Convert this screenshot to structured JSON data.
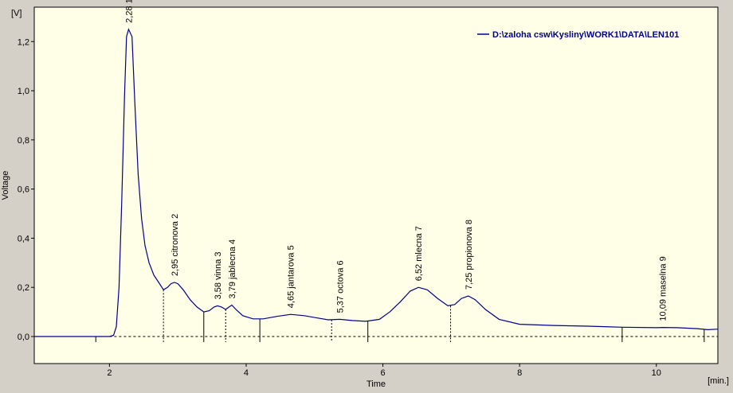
{
  "chart_data": {
    "type": "line",
    "title": "",
    "xlabel": "Time",
    "ylabel": "Voltage",
    "x_unit": "[min.]",
    "y_unit": "[V]",
    "xlim": [
      0.9,
      10.9
    ],
    "ylim": [
      -0.11,
      1.34
    ],
    "x_ticks": [
      2,
      4,
      6,
      8,
      10
    ],
    "y_ticks": [
      0.0,
      0.2,
      0.4,
      0.6,
      0.8,
      1.0,
      1.2
    ],
    "x_tick_labels": [
      "2",
      "4",
      "6",
      "8",
      "10"
    ],
    "y_tick_labels": [
      "0,0",
      "0,2",
      "0,4",
      "0,6",
      "0,8",
      "1,0",
      "1,2"
    ],
    "grid": false,
    "legend_position": "top-right",
    "colors": {
      "plot_background": "#ffffe8",
      "trace": "#00008b",
      "window": "#d4d0c8"
    },
    "series": [
      {
        "name": "D:\\zaloha csw\\Kysliny\\WORK1\\DATA\\LEN101",
        "x": [
          0.9,
          2.0,
          2.06,
          2.1,
          2.14,
          2.18,
          2.22,
          2.25,
          2.28,
          2.33,
          2.37,
          2.42,
          2.47,
          2.52,
          2.58,
          2.65,
          2.72,
          2.79,
          2.85,
          2.9,
          2.95,
          3.0,
          3.08,
          3.18,
          3.28,
          3.38,
          3.46,
          3.53,
          3.58,
          3.64,
          3.7,
          3.75,
          3.79,
          3.85,
          3.95,
          4.1,
          4.25,
          4.45,
          4.65,
          4.85,
          5.05,
          5.2,
          5.37,
          5.55,
          5.75,
          5.95,
          6.1,
          6.25,
          6.4,
          6.52,
          6.65,
          6.8,
          6.95,
          7.05,
          7.15,
          7.25,
          7.35,
          7.5,
          7.7,
          8.0,
          8.5,
          9.0,
          9.5,
          10.0,
          10.09,
          10.3,
          10.6,
          10.75,
          10.9
        ],
        "y": [
          0.0,
          0.0,
          0.005,
          0.04,
          0.2,
          0.55,
          0.98,
          1.22,
          1.25,
          1.22,
          0.96,
          0.66,
          0.48,
          0.37,
          0.3,
          0.25,
          0.22,
          0.19,
          0.2,
          0.215,
          0.22,
          0.215,
          0.19,
          0.15,
          0.12,
          0.1,
          0.105,
          0.12,
          0.125,
          0.12,
          0.11,
          0.12,
          0.128,
          0.11,
          0.085,
          0.072,
          0.072,
          0.082,
          0.09,
          0.085,
          0.075,
          0.068,
          0.07,
          0.065,
          0.062,
          0.07,
          0.1,
          0.14,
          0.185,
          0.2,
          0.19,
          0.155,
          0.125,
          0.13,
          0.155,
          0.165,
          0.15,
          0.11,
          0.07,
          0.05,
          0.045,
          0.042,
          0.038,
          0.036,
          0.037,
          0.036,
          0.032,
          0.028,
          0.03
        ]
      }
    ],
    "baseline": {
      "y": 0.0,
      "style": "dashed"
    },
    "peaks": [
      {
        "label": "2,28  1",
        "x": 2.28,
        "y": 1.25
      },
      {
        "label": "2,95 citronova  2",
        "x": 2.95,
        "y": 0.22
      },
      {
        "label": "3,58 vinna  3",
        "x": 3.58,
        "y": 0.125
      },
      {
        "label": "3,79 jablecna  4",
        "x": 3.79,
        "y": 0.128
      },
      {
        "label": "4,65 jantarova  5",
        "x": 4.65,
        "y": 0.09
      },
      {
        "label": "5,37 octova  6",
        "x": 5.37,
        "y": 0.07
      },
      {
        "label": "6,52 mlecna  7",
        "x": 6.52,
        "y": 0.2
      },
      {
        "label": "7,25 propionova  8",
        "x": 7.25,
        "y": 0.165
      },
      {
        "label": "10,09 maselna  9",
        "x": 10.09,
        "y": 0.037
      }
    ],
    "peak_boundaries": [
      {
        "x": 1.8,
        "y": 0.0,
        "style": "solid"
      },
      {
        "x": 2.79,
        "y": 0.19,
        "style": "dashed"
      },
      {
        "x": 3.38,
        "y": 0.1,
        "style": "solid"
      },
      {
        "x": 3.7,
        "y": 0.11,
        "style": "dashed"
      },
      {
        "x": 4.2,
        "y": 0.072,
        "style": "solid"
      },
      {
        "x": 5.25,
        "y": 0.068,
        "style": "dashed"
      },
      {
        "x": 5.78,
        "y": 0.062,
        "style": "solid"
      },
      {
        "x": 6.99,
        "y": 0.125,
        "style": "dashed"
      },
      {
        "x": 9.5,
        "y": 0.038,
        "style": "solid"
      },
      {
        "x": 10.7,
        "y": 0.03,
        "style": "solid"
      }
    ]
  }
}
